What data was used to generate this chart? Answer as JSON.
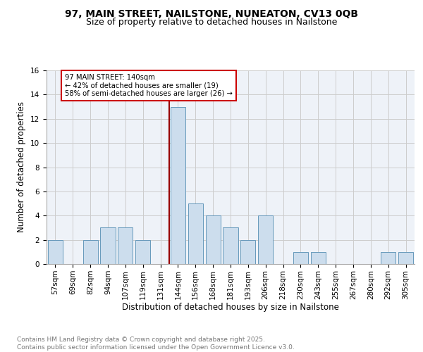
{
  "title1": "97, MAIN STREET, NAILSTONE, NUNEATON, CV13 0QB",
  "title2": "Size of property relative to detached houses in Nailstone",
  "xlabel": "Distribution of detached houses by size in Nailstone",
  "ylabel": "Number of detached properties",
  "categories": [
    "57sqm",
    "69sqm",
    "82sqm",
    "94sqm",
    "107sqm",
    "119sqm",
    "131sqm",
    "144sqm",
    "156sqm",
    "168sqm",
    "181sqm",
    "193sqm",
    "206sqm",
    "218sqm",
    "230sqm",
    "243sqm",
    "255sqm",
    "267sqm",
    "280sqm",
    "292sqm",
    "305sqm"
  ],
  "values": [
    2,
    0,
    2,
    3,
    3,
    2,
    0,
    13,
    5,
    4,
    3,
    2,
    4,
    0,
    1,
    1,
    0,
    0,
    0,
    1,
    1
  ],
  "bar_color": "#ccdded",
  "bar_edge_color": "#6699bb",
  "vline_color": "#990000",
  "annotation_text": "97 MAIN STREET: 140sqm\n← 42% of detached houses are smaller (19)\n58% of semi-detached houses are larger (26) →",
  "annotation_box_color": "white",
  "annotation_box_edge": "#cc0000",
  "ylim": [
    0,
    16
  ],
  "yticks": [
    0,
    2,
    4,
    6,
    8,
    10,
    12,
    14,
    16
  ],
  "grid_color": "#cccccc",
  "background_color": "#eef2f8",
  "footer_text": "Contains HM Land Registry data © Crown copyright and database right 2025.\nContains public sector information licensed under the Open Government Licence v3.0.",
  "title_fontsize": 10,
  "subtitle_fontsize": 9,
  "axis_label_fontsize": 8.5,
  "tick_fontsize": 7.5,
  "footer_fontsize": 6.5
}
